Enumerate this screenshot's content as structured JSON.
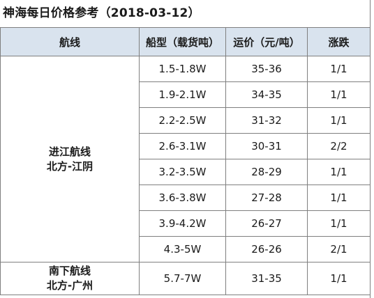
{
  "title": "神海每日价格参考（2018-03-12）",
  "headers": {
    "route": "航线",
    "ship_type": "船型（载货吨）",
    "freight": "运价（元/吨）",
    "change": "涨跌"
  },
  "groups": [
    {
      "route_line1": "进江航线",
      "route_line2": "北方-江阴",
      "rows": [
        {
          "ship_type": "1.5-1.8W",
          "freight": "35-36",
          "change": "1/1"
        },
        {
          "ship_type": "1.9-2.1W",
          "freight": "34-35",
          "change": "1/1"
        },
        {
          "ship_type": "2.2-2.5W",
          "freight": "31-32",
          "change": "1/1"
        },
        {
          "ship_type": "2.6-3.1W",
          "freight": "30-31",
          "change": "2/2"
        },
        {
          "ship_type": "3.2-3.5W",
          "freight": "28-29",
          "change": "1/1"
        },
        {
          "ship_type": "3.6-3.8W",
          "freight": "27-28",
          "change": "1/1"
        },
        {
          "ship_type": "3.9-4.2W",
          "freight": "26-27",
          "change": "1/1"
        },
        {
          "ship_type": "4.3-5W",
          "freight": "26-26",
          "change": "2/1"
        }
      ]
    },
    {
      "route_line1": "南下航线",
      "route_line2": "北方-广州",
      "rows": [
        {
          "ship_type": "5.7-7W",
          "freight": "31-35",
          "change": "1/1"
        }
      ]
    }
  ]
}
